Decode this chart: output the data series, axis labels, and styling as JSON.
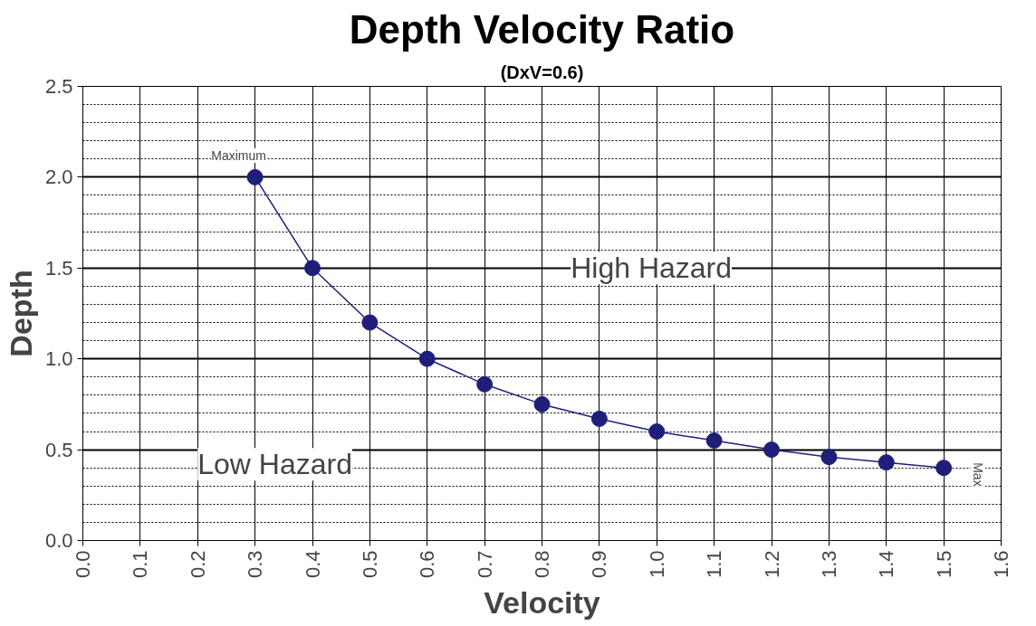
{
  "chart_data": {
    "type": "line",
    "title": "Depth Velocity Ratio",
    "subtitle": "(DxV=0.6)",
    "xlabel": "Velocity",
    "ylabel": "Depth",
    "x": [
      0.3,
      0.4,
      0.5,
      0.6,
      0.7,
      0.8,
      0.9,
      1.0,
      1.1,
      1.2,
      1.3,
      1.4,
      1.5
    ],
    "series": [
      {
        "color": "#1f1f7a",
        "values": [
          2.0,
          1.5,
          1.2,
          1.0,
          0.86,
          0.75,
          0.67,
          0.6,
          0.55,
          0.5,
          0.46,
          0.43,
          0.4
        ]
      }
    ],
    "xlim": [
      0.0,
      1.6
    ],
    "ylim": [
      0.0,
      2.5
    ],
    "xticks": [
      {
        "value": 0.0,
        "label": "0.0"
      },
      {
        "value": 0.1,
        "label": "0.1"
      },
      {
        "value": 0.2,
        "label": "0.2"
      },
      {
        "value": 0.3,
        "label": "0.3"
      },
      {
        "value": 0.4,
        "label": "0.4"
      },
      {
        "value": 0.5,
        "label": "0.5"
      },
      {
        "value": 0.6,
        "label": "0.6"
      },
      {
        "value": 0.7,
        "label": "0.7"
      },
      {
        "value": 0.8,
        "label": "0.8"
      },
      {
        "value": 0.9,
        "label": "0.9"
      },
      {
        "value": 1.0,
        "label": "1.0"
      },
      {
        "value": 1.1,
        "label": "1.1"
      },
      {
        "value": 1.2,
        "label": "1.2"
      },
      {
        "value": 1.3,
        "label": "1.3"
      },
      {
        "value": 1.4,
        "label": "1.4"
      },
      {
        "value": 1.5,
        "label": "1.5"
      },
      {
        "value": 1.6,
        "label": "1.6"
      }
    ],
    "yticks": [
      {
        "value": 0.0,
        "label": "0.0"
      },
      {
        "value": 0.5,
        "label": "0.5"
      },
      {
        "value": 1.0,
        "label": "1.0"
      },
      {
        "value": 1.5,
        "label": "1.5"
      },
      {
        "value": 2.0,
        "label": "2.0"
      },
      {
        "value": 2.5,
        "label": "2.5"
      }
    ],
    "grid": true,
    "marker": "circle",
    "line_style": "solid",
    "annotations": [
      {
        "text": "Maximum",
        "x": 0.3,
        "y": 2.0
      },
      "High Hazard",
      "Low Hazard",
      {
        "text": "Max",
        "x": 1.5,
        "y": 0.4
      }
    ]
  }
}
